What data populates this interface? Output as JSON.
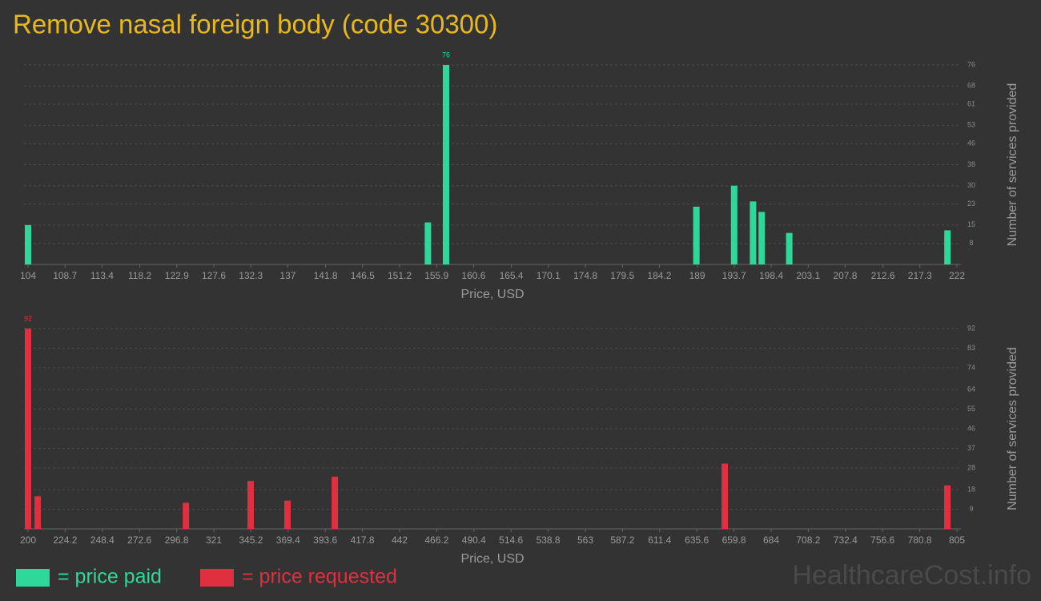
{
  "title": "Remove nasal foreign body (code 30300)",
  "watermark": "HealthcareCost.info",
  "chart_data": [
    {
      "type": "bar",
      "name": "= price paid",
      "color": "#2ed89a",
      "x_label": "Price, USD",
      "y_label": "Number of services provided",
      "x": [
        104,
        154.8,
        157.1,
        188.9,
        193.7,
        196.1,
        197.2,
        200.7,
        220.8
      ],
      "values": [
        15,
        16,
        76,
        22,
        30,
        24,
        20,
        12,
        13
      ],
      "xlim": [
        104,
        222
      ],
      "xticks": [
        104,
        108.7,
        113.4,
        118.2,
        122.9,
        127.6,
        132.3,
        137,
        141.8,
        146.5,
        151.2,
        155.9,
        160.6,
        165.4,
        170.1,
        174.8,
        179.5,
        184.2,
        189,
        193.7,
        198.4,
        203.1,
        207.8,
        212.6,
        217.3,
        222
      ],
      "ylim": [
        0,
        76
      ],
      "yticks": [
        8,
        15,
        23,
        30,
        38,
        46,
        53,
        61,
        68,
        76
      ],
      "grid": true,
      "label_max": true
    },
    {
      "type": "bar",
      "name": "= price requested",
      "color": "#e03040",
      "x_label": "Price, USD",
      "y_label": "Number of services provided",
      "x": [
        200,
        206.3,
        302.8,
        345,
        369,
        399.8,
        653.8,
        798.8
      ],
      "values": [
        92,
        15,
        12,
        22,
        13,
        24,
        30,
        20
      ],
      "xlim": [
        200,
        805
      ],
      "xticks": [
        200,
        224.2,
        248.4,
        272.6,
        296.8,
        321,
        345.2,
        369.4,
        393.6,
        417.8,
        442,
        466.2,
        490.4,
        514.6,
        538.8,
        563,
        587.2,
        611.4,
        635.6,
        659.8,
        684,
        708.2,
        732.4,
        756.6,
        780.8,
        805
      ],
      "ylim": [
        0,
        92
      ],
      "yticks": [
        9,
        18,
        28,
        37,
        46,
        55,
        64,
        74,
        83,
        92
      ],
      "grid": true,
      "label_max": true
    }
  ]
}
